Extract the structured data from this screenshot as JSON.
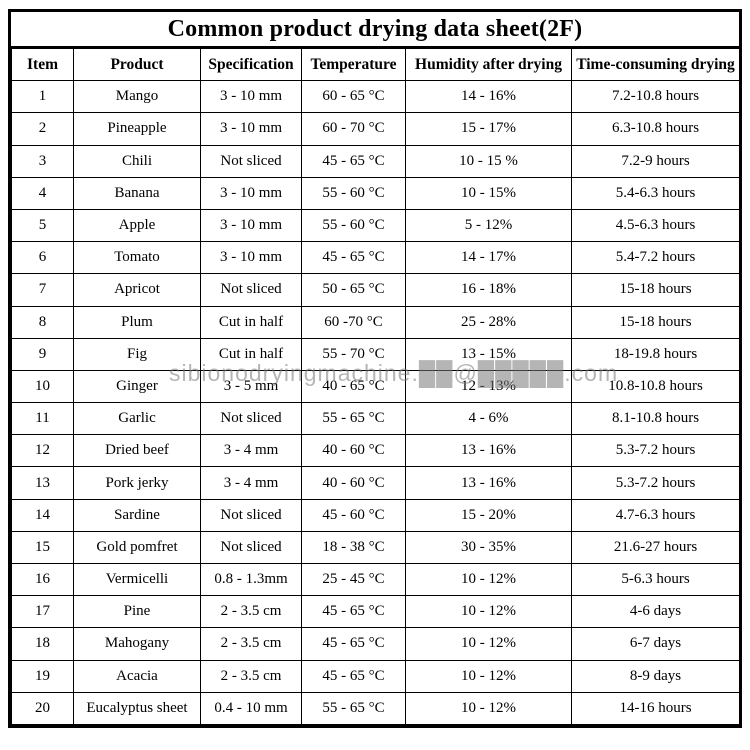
{
  "title": "Common product drying data sheet(2F)",
  "watermark": "sibionodryingmachine.██@█████.com",
  "table": {
    "columns": [
      "Item",
      "Product",
      "Specification",
      "Temperature",
      "Humidity after drying",
      "Time-consuming drying"
    ],
    "rows": [
      [
        "1",
        "Mango",
        "3 - 10 mm",
        "60 - 65 °C",
        "14 - 16%",
        "7.2-10.8 hours"
      ],
      [
        "2",
        "Pineapple",
        "3 - 10 mm",
        "60 - 70 °C",
        "15 - 17%",
        "6.3-10.8 hours"
      ],
      [
        "3",
        "Chili",
        "Not sliced",
        "45 - 65 °C",
        "10 - 15 %",
        "7.2-9 hours"
      ],
      [
        "4",
        "Banana",
        "3 - 10 mm",
        "55 - 60 °C",
        "10 - 15%",
        "5.4-6.3 hours"
      ],
      [
        "5",
        "Apple",
        "3 - 10 mm",
        "55 - 60 °C",
        "5 - 12%",
        "4.5-6.3 hours"
      ],
      [
        "6",
        "Tomato",
        "3 - 10 mm",
        "45 - 65 °C",
        "14 - 17%",
        "5.4-7.2 hours"
      ],
      [
        "7",
        "Apricot",
        "Not sliced",
        "50 - 65 °C",
        "16 - 18%",
        "15-18 hours"
      ],
      [
        "8",
        "Plum",
        "Cut in half",
        "60 -70 °C",
        "25 - 28%",
        "15-18 hours"
      ],
      [
        "9",
        "Fig",
        "Cut in half",
        "55 - 70 °C",
        "13 - 15%",
        "18-19.8 hours"
      ],
      [
        "10",
        "Ginger",
        "3 - 5 mm",
        "40 - 65 °C",
        "12 - 13%",
        "10.8-10.8 hours"
      ],
      [
        "11",
        "Garlic",
        "Not sliced",
        "55 - 65 °C",
        "4 - 6%",
        "8.1-10.8 hours"
      ],
      [
        "12",
        "Dried beef",
        "3 - 4 mm",
        "40 - 60 °C",
        "13 - 16%",
        "5.3-7.2 hours"
      ],
      [
        "13",
        "Pork jerky",
        "3 - 4 mm",
        "40 - 60 °C",
        "13 - 16%",
        "5.3-7.2 hours"
      ],
      [
        "14",
        "Sardine",
        "Not sliced",
        "45 - 60 °C",
        "15 - 20%",
        "4.7-6.3 hours"
      ],
      [
        "15",
        "Gold pomfret",
        "Not sliced",
        "18 - 38 °C",
        "30 - 35%",
        "21.6-27 hours"
      ],
      [
        "16",
        "Vermicelli",
        "0.8 - 1.3mm",
        "25 - 45 °C",
        "10 - 12%",
        "5-6.3 hours"
      ],
      [
        "17",
        "Pine",
        "2 - 3.5 cm",
        "45 - 65 °C",
        "10 - 12%",
        "4-6 days"
      ],
      [
        "18",
        "Mahogany",
        "2 - 3.5 cm",
        "45 - 65 °C",
        "10 - 12%",
        "6-7 days"
      ],
      [
        "19",
        "Acacia",
        "2 - 3.5 cm",
        "45 - 65 °C",
        "10 - 12%",
        "8-9 days"
      ],
      [
        "20",
        "Eucalyptus sheet",
        "0.4 - 10 mm",
        "55 - 65 °C",
        "10 - 12%",
        "14-16 hours"
      ]
    ]
  }
}
